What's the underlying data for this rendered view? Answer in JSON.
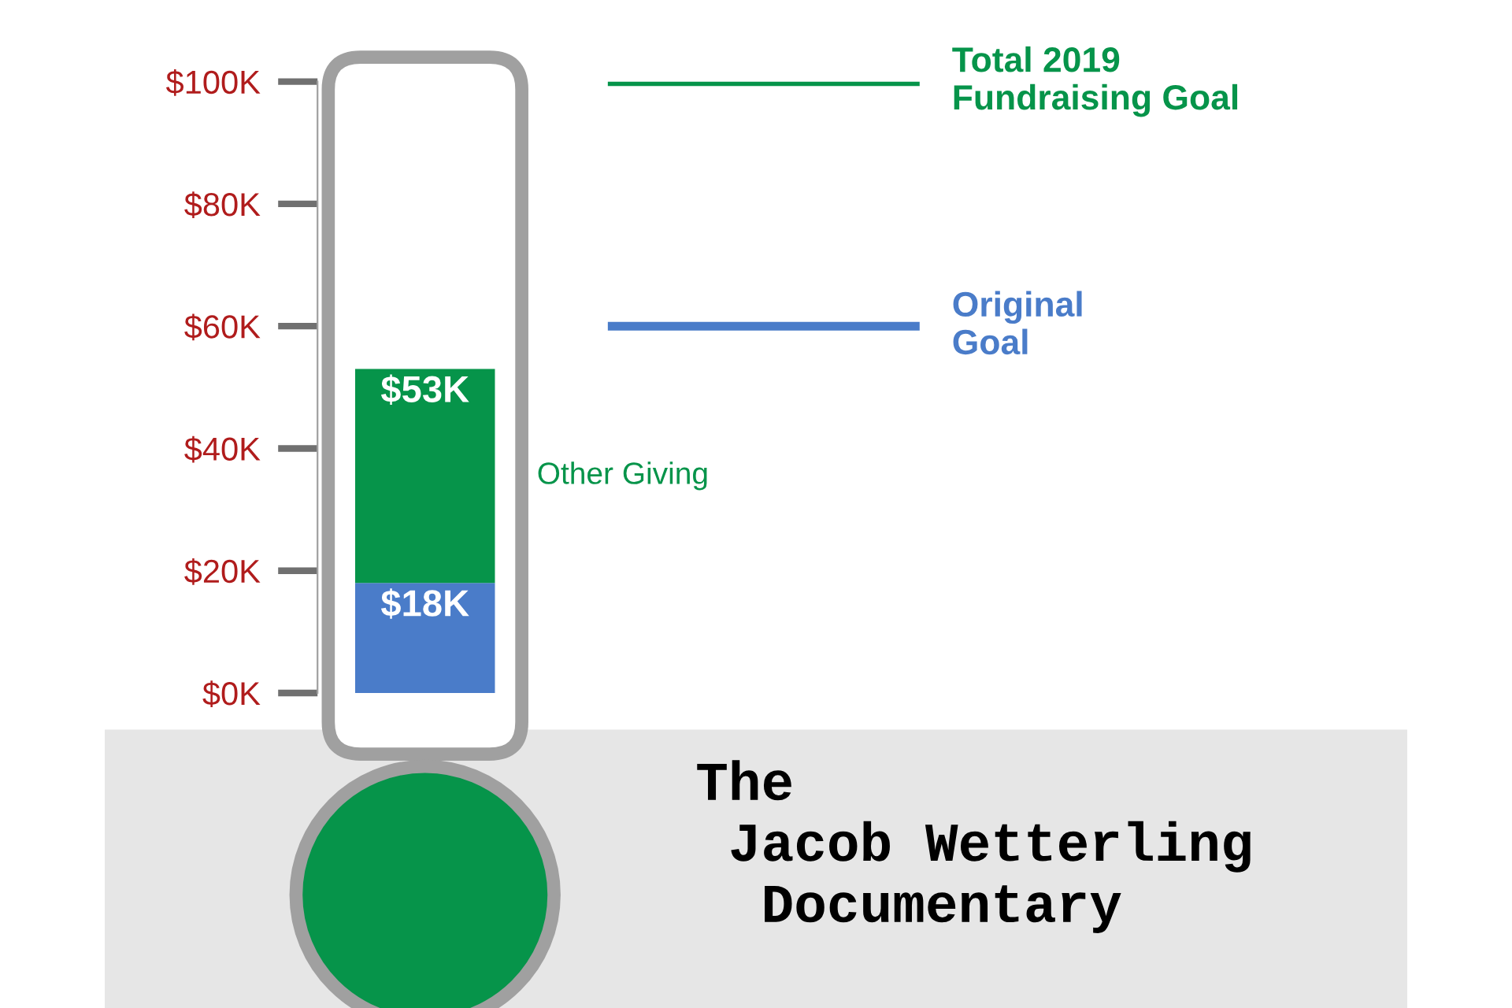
{
  "chart_data": {
    "type": "bar",
    "stacked": true,
    "categories": [
      null
    ],
    "series": [
      {
        "color": "#4a7cc9",
        "values": [
          18
        ],
        "value_labels": [
          "$18K"
        ]
      },
      {
        "name": "Other Giving",
        "color": "#06944a",
        "values": [
          35
        ]
      }
    ],
    "totals": [
      "$53K"
    ],
    "ylim": [
      0,
      100
    ],
    "yticks": [
      {
        "value": 0,
        "label": "$0K"
      },
      {
        "value": 20,
        "label": "$20K"
      },
      {
        "value": 40,
        "label": "$40K"
      },
      {
        "value": 60,
        "label": "$60K"
      },
      {
        "value": 80,
        "label": "$80K"
      },
      {
        "value": 100,
        "label": "$100K"
      }
    ],
    "ref_lines": [
      {
        "axis": "y",
        "value": 100,
        "label": "Total 2019\nFundraising Goal",
        "color": "#06944a"
      },
      {
        "axis": "y",
        "value": 60,
        "label": "Original\nGoal",
        "color": "#4a7cc9"
      }
    ],
    "annotations": [
      "The\n Jacob Wetterling\n  Documentary"
    ],
    "legend": false,
    "grid": false
  }
}
